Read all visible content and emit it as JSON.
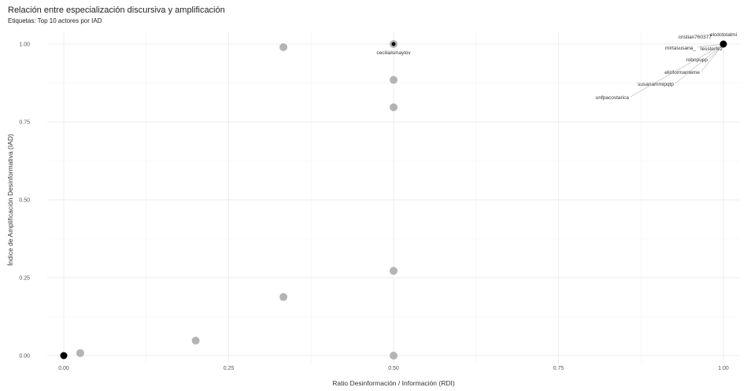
{
  "chart_data": {
    "type": "scatter",
    "title": "Relación entre especialización discursiva y amplificación",
    "subtitle": "Etiquetas: Top 10 actores por IAD",
    "xlabel": "Ratio Desinformación / Información (RDI)",
    "ylabel": "Índice de Amplificación Desinformativa (IAD)",
    "xlim": [
      0,
      1
    ],
    "ylim": [
      0,
      1
    ],
    "x_ticks": [
      "0.00",
      "0.25",
      "0.50",
      "0.75",
      "1.00"
    ],
    "y_ticks": [
      "0.00",
      "0.25",
      "0.50",
      "0.75",
      "1.00"
    ],
    "grid": true,
    "colors": {
      "highlight": "#000000",
      "other": "#b0b0b0",
      "label_line": "#999999"
    },
    "series": [
      {
        "name": "",
        "points": [
          {
            "x": 0.333,
            "y": 0.99
          },
          {
            "x": 0.5,
            "y": 0.885
          },
          {
            "x": 0.5,
            "y": 0.797
          },
          {
            "x": 0.5,
            "y": 0.272
          },
          {
            "x": 0.333,
            "y": 0.188
          },
          {
            "x": 0.2,
            "y": 0.048
          },
          {
            "x": 0.025,
            "y": 0.008
          },
          {
            "x": 0.5,
            "y": 0.0
          },
          {
            "x": 0.5,
            "y": 1.0
          }
        ]
      },
      {
        "name": "",
        "points": [
          {
            "x": 0.0,
            "y": 0.0
          },
          {
            "x": 1.0,
            "y": 1.0
          },
          {
            "x": 0.5,
            "y": 1.0
          }
        ]
      }
    ],
    "labels": [
      {
        "text": "cecilialsmaylov",
        "x": 0.5,
        "y": 1.0
      },
      {
        "text": "elcdctotalmi",
        "x": 1.0,
        "y": 1.0
      },
      {
        "text": "cristian760377",
        "x": 1.0,
        "y": 1.0
      },
      {
        "text": "mirtasusana_",
        "x": 1.0,
        "y": 1.0
      },
      {
        "text": "lessterfez",
        "x": 1.0,
        "y": 1.0
      },
      {
        "text": "robnpupp",
        "x": 1.0,
        "y": 1.0
      },
      {
        "text": "elinformanteme",
        "x": 1.0,
        "y": 1.0
      },
      {
        "text": "susanammipqtp",
        "x": 1.0,
        "y": 1.0
      },
      {
        "text": "unfpacostarica",
        "x": 1.0,
        "y": 1.0
      }
    ]
  }
}
